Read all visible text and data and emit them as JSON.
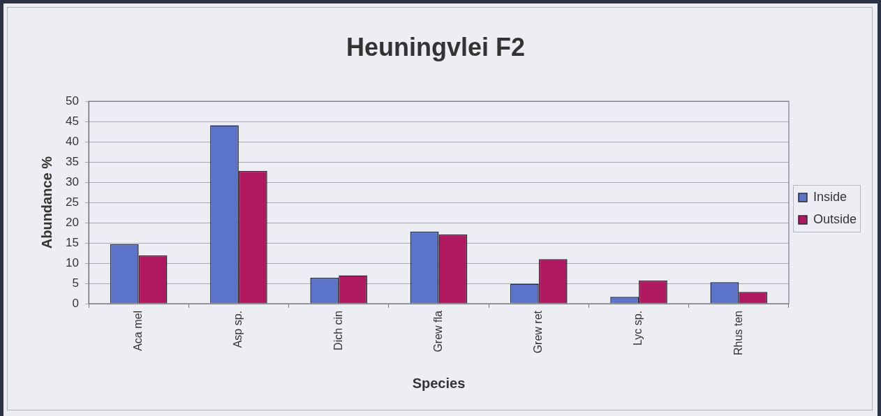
{
  "chart_data": {
    "type": "bar",
    "title": "Heuningvlei F2",
    "xlabel": "Species",
    "ylabel": "Abundance %",
    "categories": [
      "Aca mel",
      "Asp sp.",
      "Dich cin",
      "Grew fla",
      "Grew ret",
      "Lyc sp.",
      "Rhus ten"
    ],
    "series": [
      {
        "name": "Inside",
        "color": "#5b74c9",
        "values": [
          14.7,
          44.1,
          6.4,
          17.8,
          4.9,
          1.7,
          5.3
        ]
      },
      {
        "name": "Outside",
        "color": "#b0185f",
        "values": [
          11.9,
          32.8,
          7.0,
          17.1,
          11.0,
          5.7,
          2.9
        ]
      }
    ],
    "ylim": [
      0,
      50
    ],
    "yticks": [
      0,
      5,
      10,
      15,
      20,
      25,
      30,
      35,
      40,
      45,
      50
    ],
    "grid": "y",
    "legend": "right"
  }
}
